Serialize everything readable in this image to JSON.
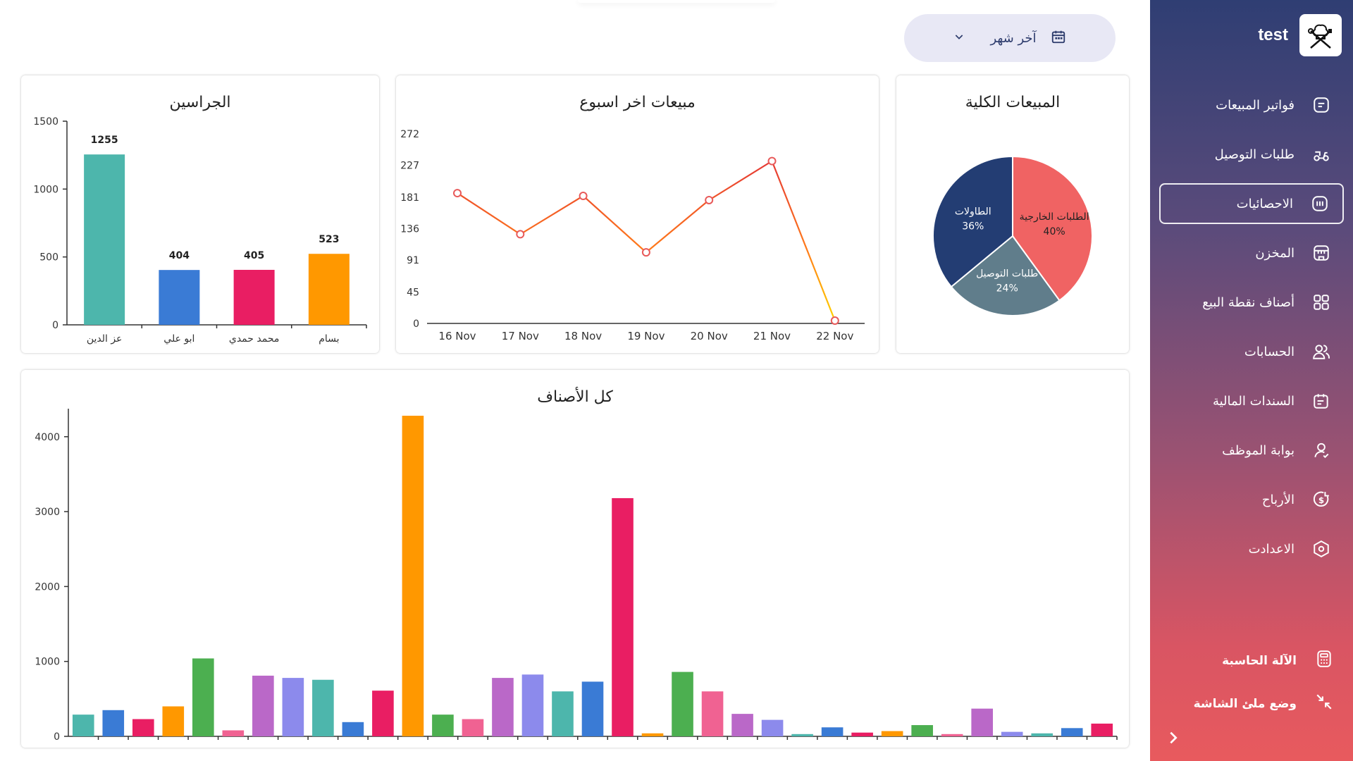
{
  "header": {
    "date_filter": {
      "label": "آخر شهر"
    }
  },
  "sidebar": {
    "brand_name": "test",
    "items": [
      {
        "label": "فواتير المبيعات",
        "icon": "invoice-icon",
        "active": false
      },
      {
        "label": "طلبات التوصيل",
        "icon": "delivery-scooter-icon",
        "active": false
      },
      {
        "label": "الاحصائيات",
        "icon": "stats-icon",
        "active": true
      },
      {
        "label": "المخزن",
        "icon": "store-icon",
        "active": false
      },
      {
        "label": "أصناف نقطة البيع",
        "icon": "grid-icon",
        "active": false
      },
      {
        "label": "الحسابات",
        "icon": "users-icon",
        "active": false
      },
      {
        "label": "السندات المالية",
        "icon": "calendar-note-icon",
        "active": false
      },
      {
        "label": "بوابة الموظف",
        "icon": "employee-icon",
        "active": false
      },
      {
        "label": "الأرباح",
        "icon": "dollar-icon",
        "active": false
      },
      {
        "label": "الاعدادت",
        "icon": "settings-hex-icon",
        "active": false
      }
    ],
    "calculator_label": "الآلة الحاسبة",
    "fullscreen_label": "وضع ملئ الشاشة"
  },
  "colors": {
    "teal": "#4db6ac",
    "blue": "#3a7bd5",
    "pink": "#e91e63",
    "orange": "#ff9800",
    "green": "#4caf50",
    "light_pink": "#f06292",
    "purple": "#ba68c8",
    "periwinkle": "#8c8aec",
    "pie_red": "#f06363",
    "pie_navy": "#233d73",
    "pie_slate": "#607d8b"
  },
  "chart_data": [
    {
      "id": "total-sales",
      "type": "pie",
      "title": "المبيعات الكلية",
      "slices": [
        {
          "name": "الطلبات الخارجية",
          "value": 40,
          "label": "40%"
        },
        {
          "name": "طلبات التوصيل",
          "value": 24,
          "label": "24%"
        },
        {
          "name": "الطاولات",
          "value": 36,
          "label": "36%"
        }
      ]
    },
    {
      "id": "weekly-sales",
      "type": "line",
      "title": "مبيعات اخر اسبوع",
      "categories": [
        "16 Nov",
        "17 Nov",
        "18 Nov",
        "19 Nov",
        "20 Nov",
        "21 Nov",
        "22 Nov"
      ],
      "values": [
        187,
        128,
        183,
        102,
        177,
        233,
        4
      ],
      "yticks": [
        0,
        45,
        91,
        136,
        181,
        227,
        272
      ],
      "ylim": [
        0,
        272
      ],
      "grid": false
    },
    {
      "id": "waiters",
      "type": "bar",
      "title": "الجراسين",
      "categories": [
        "عز الدين",
        "ابو علي",
        "محمد حمدي",
        "بسام"
      ],
      "values": [
        1255,
        404,
        405,
        523
      ],
      "yticks": [
        0,
        500,
        1000,
        1500
      ],
      "ylim": [
        0,
        1500
      ],
      "grid": false
    },
    {
      "id": "all-items",
      "type": "bar",
      "title": "كل الأصناف",
      "values": [
        290,
        350,
        230,
        400,
        1040,
        80,
        810,
        780,
        755,
        190,
        610,
        4280,
        290,
        230,
        780,
        825,
        600,
        730,
        3180,
        40,
        860,
        600,
        300,
        220,
        30,
        120,
        50,
        70,
        150,
        30,
        370,
        60,
        40,
        110,
        170
      ],
      "yticks": [
        0,
        1000,
        2000,
        3000,
        4000
      ],
      "ylim": [
        0,
        4280
      ],
      "grid": false
    }
  ]
}
